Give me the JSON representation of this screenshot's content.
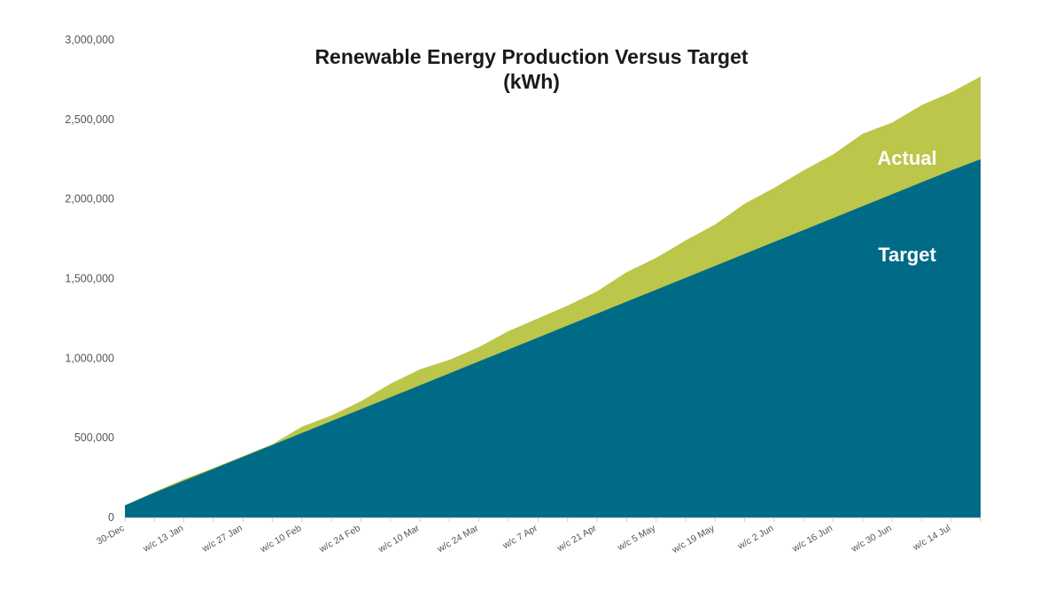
{
  "chart_data": {
    "type": "area",
    "stacked": false,
    "title": [
      "Renewable Energy Production Versus Target",
      "(kWh)"
    ],
    "xlabel": "",
    "ylabel": "",
    "ylim": [
      0,
      3000000
    ],
    "y_ticks": [
      0,
      500000,
      1000000,
      1500000,
      2000000,
      2500000,
      3000000
    ],
    "y_tick_labels": [
      "0",
      "500,000",
      "1,000,000",
      "1,500,000",
      "2,000,000",
      "2,500,000",
      "3,000,000"
    ],
    "grid": false,
    "x_tick_labels": [
      "30-Dec",
      "w/c 13 Jan",
      "w/c 27 Jan",
      "w/c 10 Feb",
      "w/c 24 Feb",
      "w/c 10 Mar",
      "w/c 24 Mar",
      "w/c 7 Apr",
      "w/c 21 Apr",
      "w/c 5 May",
      "w/c 19 May",
      "w/c 2 Jun",
      "w/c 16 Jun",
      "w/c 30 Jun",
      "w/c 14 Jul"
    ],
    "x_tick_every": 2,
    "x": [
      "30-Dec",
      "w/c 6 Jan",
      "w/c 13 Jan",
      "w/c 20 Jan",
      "w/c 27 Jan",
      "w/c 3 Feb",
      "w/c 10 Feb",
      "w/c 17 Feb",
      "w/c 24 Feb",
      "w/c 3 Mar",
      "w/c 10 Mar",
      "w/c 17 Mar",
      "w/c 24 Mar",
      "w/c 31 Mar",
      "w/c 7 Apr",
      "w/c 14 Apr",
      "w/c 21 Apr",
      "w/c 28 Apr",
      "w/c 5 May",
      "w/c 12 May",
      "w/c 19 May",
      "w/c 26 May",
      "w/c 2 Jun",
      "w/c 9 Jun",
      "w/c 16 Jun",
      "w/c 23 Jun",
      "w/c 30 Jun",
      "w/c 7 Jul",
      "w/c 14 Jul",
      "w/c 21 Jul"
    ],
    "series": [
      {
        "name": "Actual",
        "color": "#bcc64a",
        "values": [
          75000,
          160000,
          240000,
          310000,
          385000,
          460000,
          570000,
          640000,
          730000,
          840000,
          930000,
          990000,
          1070000,
          1170000,
          1250000,
          1330000,
          1420000,
          1540000,
          1630000,
          1740000,
          1840000,
          1970000,
          2070000,
          2180000,
          2280000,
          2410000,
          2480000,
          2590000,
          2670000,
          2770000
        ]
      },
      {
        "name": "Target",
        "color": "#006b87",
        "values": [
          75000,
          155000,
          230000,
          305000,
          380000,
          455000,
          530000,
          605000,
          680000,
          755000,
          830000,
          905000,
          980000,
          1055000,
          1130000,
          1205000,
          1280000,
          1355000,
          1430000,
          1505000,
          1580000,
          1655000,
          1730000,
          1805000,
          1880000,
          1955000,
          2030000,
          2105000,
          2180000,
          2250000
        ]
      }
    ]
  }
}
